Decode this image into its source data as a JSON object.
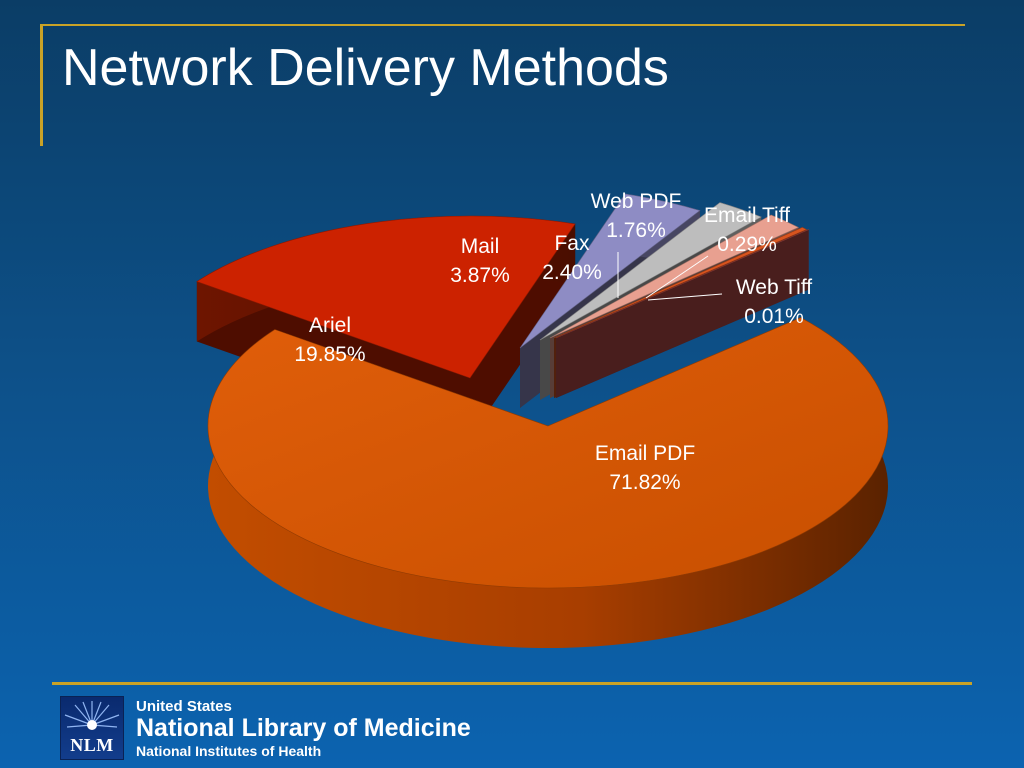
{
  "slide": {
    "title": "Network Delivery Methods"
  },
  "footer": {
    "logo_text": "NLM",
    "line1": "United States",
    "line2": "National Library of Medicine",
    "line3": "National Institutes of Health"
  },
  "colors": {
    "accent_gold": "#c9a227",
    "email_pdf": "#d45500",
    "ariel": "#cc2200",
    "mail": "#8e8cc4",
    "fax": "#bdbdbd",
    "web_pdf": "#e8a090",
    "email_tiff": "#d8541f",
    "web_tiff": "#c0504d"
  },
  "chart_data": {
    "type": "pie",
    "title": "Network Delivery Methods",
    "style": "3d-exploded",
    "slices": [
      {
        "label": "Email PDF",
        "value": 71.82,
        "display": "71.82%",
        "color": "#d45500"
      },
      {
        "label": "Ariel",
        "value": 19.85,
        "display": "19.85%",
        "color": "#cc2200"
      },
      {
        "label": "Mail",
        "value": 3.87,
        "display": "3.87%",
        "color": "#8e8cc4"
      },
      {
        "label": "Fax",
        "value": 2.4,
        "display": "2.40%",
        "color": "#bdbdbd"
      },
      {
        "label": "Web PDF",
        "value": 1.76,
        "display": "1.76%",
        "color": "#e8a090"
      },
      {
        "label": "Email Tiff",
        "value": 0.29,
        "display": "0.29%",
        "color": "#d8541f"
      },
      {
        "label": "Web Tiff",
        "value": 0.01,
        "display": "0.01%",
        "color": "#c0504d"
      }
    ],
    "legend": "none"
  }
}
